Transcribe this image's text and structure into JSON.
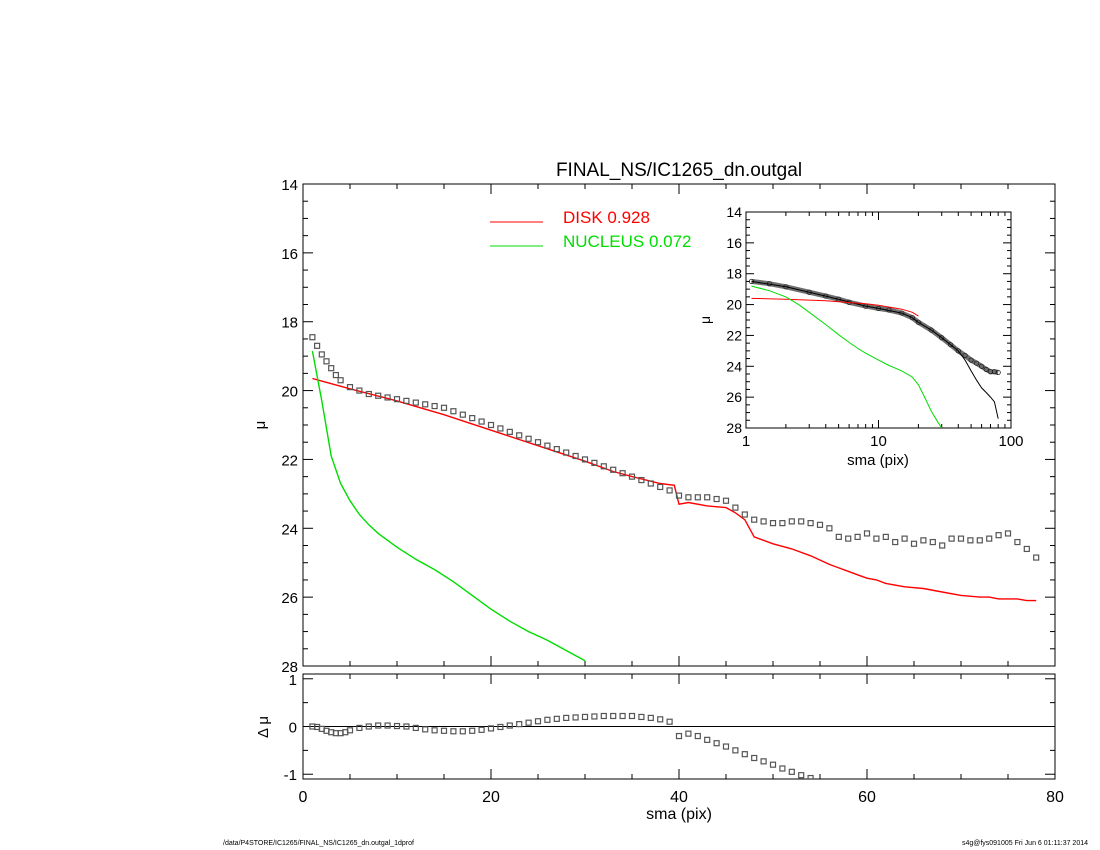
{
  "figure": {
    "title": "FINAL_NS/IC1265_dn.outgal",
    "footer_left": "/data/P4STORE/IC1265/FINAL_NS/IC1265_dn.outgal_1dprof",
    "footer_right": "s4g@fys091005  Fri Jun  6 01:11:37 2014"
  },
  "chart_data": [
    {
      "id": "main",
      "type": "scatter",
      "title": "FINAL_NS/IC1265_dn.outgal",
      "xlabel": "",
      "ylabel": "μ",
      "xlim": [
        0,
        80
      ],
      "ylim": [
        28,
        14
      ],
      "y_inverted": true,
      "yticks": [
        14,
        16,
        18,
        20,
        22,
        24,
        26,
        28
      ],
      "legend": {
        "placement": "top-center",
        "entries": [
          {
            "label": "DISK",
            "value": "0.928",
            "color": "#ff0000"
          },
          {
            "label": "NUCLEUS",
            "value": "0.072",
            "color": "#00dd00"
          }
        ]
      },
      "series": [
        {
          "name": "DISK",
          "kind": "line",
          "color": "#ff0000",
          "x": [
            1,
            5,
            10,
            15,
            20,
            25,
            30,
            33,
            35,
            38,
            39.5,
            40,
            41,
            43,
            45,
            46,
            47,
            48,
            50,
            52,
            54,
            56,
            57,
            58,
            59,
            60,
            61,
            62,
            64,
            66,
            68,
            70,
            72,
            73,
            74,
            75,
            76,
            77,
            78
          ],
          "y": [
            19.65,
            19.95,
            20.3,
            20.7,
            21.15,
            21.6,
            22.05,
            22.35,
            22.5,
            22.7,
            22.75,
            23.3,
            23.25,
            23.35,
            23.4,
            23.55,
            23.75,
            24.25,
            24.45,
            24.6,
            24.8,
            25.05,
            25.15,
            25.25,
            25.35,
            25.45,
            25.5,
            25.6,
            25.7,
            25.75,
            25.85,
            25.95,
            26.0,
            26.0,
            26.05,
            26.05,
            26.05,
            26.1,
            26.1
          ]
        },
        {
          "name": "NUCLEUS",
          "kind": "line",
          "color": "#00dd00",
          "x": [
            1,
            2,
            3,
            4,
            5,
            6,
            7,
            8,
            10,
            12,
            14,
            16,
            18,
            20,
            22,
            24,
            26,
            28,
            30
          ],
          "y": [
            18.85,
            20.3,
            21.9,
            22.7,
            23.2,
            23.6,
            23.9,
            24.15,
            24.55,
            24.9,
            25.2,
            25.55,
            25.95,
            26.35,
            26.7,
            27.0,
            27.25,
            27.55,
            27.85
          ]
        },
        {
          "name": "",
          "kind": "markers",
          "color": "#555555",
          "x": [
            1,
            1.5,
            2,
            2.5,
            3,
            3.5,
            4,
            5,
            6,
            7,
            8,
            9,
            10,
            11,
            12,
            13,
            14,
            15,
            16,
            17,
            18,
            19,
            20,
            21,
            22,
            23,
            24,
            25,
            26,
            27,
            28,
            29,
            30,
            31,
            32,
            33,
            34,
            35,
            36,
            37,
            38,
            39,
            40,
            41,
            42,
            43,
            44,
            45,
            46,
            47,
            48,
            49,
            50,
            51,
            52,
            53,
            54,
            55,
            56,
            57,
            58,
            59,
            60,
            61,
            62,
            63,
            64,
            65,
            66,
            67,
            68,
            69,
            70,
            71,
            72,
            73,
            74,
            75,
            76,
            77,
            78
          ],
          "y": [
            18.45,
            18.7,
            18.95,
            19.15,
            19.35,
            19.55,
            19.7,
            19.9,
            20.0,
            20.1,
            20.15,
            20.2,
            20.25,
            20.3,
            20.35,
            20.4,
            20.45,
            20.5,
            20.6,
            20.7,
            20.8,
            20.9,
            21.0,
            21.1,
            21.2,
            21.3,
            21.4,
            21.5,
            21.6,
            21.7,
            21.8,
            21.9,
            22.0,
            22.1,
            22.2,
            22.3,
            22.4,
            22.5,
            22.6,
            22.7,
            22.8,
            22.9,
            23.05,
            23.1,
            23.1,
            23.1,
            23.15,
            23.2,
            23.4,
            23.6,
            23.75,
            23.8,
            23.85,
            23.85,
            23.8,
            23.8,
            23.85,
            23.9,
            24.0,
            24.25,
            24.3,
            24.25,
            24.15,
            24.3,
            24.25,
            24.4,
            24.3,
            24.45,
            24.35,
            24.4,
            24.5,
            24.3,
            24.3,
            24.35,
            24.35,
            24.3,
            24.2,
            24.15,
            24.4,
            24.6,
            24.85
          ]
        }
      ]
    },
    {
      "id": "residual",
      "type": "scatter",
      "xlabel": "sma (pix)",
      "ylabel": "Δ μ",
      "xlim": [
        0,
        80
      ],
      "ylim": [
        -1.1,
        1.1
      ],
      "xticks": [
        0,
        20,
        40,
        60,
        80
      ],
      "yticks": [
        -1,
        0,
        1
      ],
      "reference_line": 0,
      "series": [
        {
          "name": "",
          "kind": "markers",
          "color": "#555555",
          "x": [
            1,
            1.5,
            2,
            2.5,
            3,
            3.5,
            4,
            4.5,
            5,
            6,
            7,
            8,
            9,
            10,
            11,
            12,
            13,
            14,
            15,
            16,
            17,
            18,
            19,
            20,
            21,
            22,
            23,
            24,
            25,
            26,
            27,
            28,
            29,
            30,
            31,
            32,
            33,
            34,
            35,
            36,
            37,
            38,
            39,
            40,
            41,
            42,
            43,
            44,
            45,
            46,
            47,
            48,
            49,
            50,
            51,
            52,
            53,
            54
          ],
          "y": [
            0.0,
            -0.01,
            -0.05,
            -0.09,
            -0.12,
            -0.14,
            -0.14,
            -0.12,
            -0.08,
            -0.03,
            0.0,
            0.02,
            0.02,
            0.01,
            0.0,
            -0.03,
            -0.06,
            -0.08,
            -0.09,
            -0.1,
            -0.1,
            -0.09,
            -0.07,
            -0.04,
            -0.01,
            0.02,
            0.05,
            0.08,
            0.11,
            0.14,
            0.16,
            0.18,
            0.19,
            0.2,
            0.21,
            0.22,
            0.22,
            0.22,
            0.22,
            0.2,
            0.18,
            0.15,
            0.1,
            -0.2,
            -0.15,
            -0.2,
            -0.28,
            -0.35,
            -0.42,
            -0.5,
            -0.58,
            -0.66,
            -0.73,
            -0.8,
            -0.88,
            -0.95,
            -1.02,
            -1.08
          ]
        }
      ]
    },
    {
      "id": "inset",
      "type": "line",
      "xlabel": "sma (pix)",
      "ylabel": "μ",
      "xscale": "log",
      "xlim": [
        1,
        100
      ],
      "ylim": [
        28,
        14
      ],
      "xticks": [
        1,
        10,
        100
      ],
      "yticks": [
        14,
        16,
        18,
        20,
        22,
        24,
        26,
        28
      ],
      "series": [
        {
          "name": "",
          "kind": "band",
          "color": "#555555",
          "x": [
            1.1,
            1.5,
            2,
            3,
            4,
            5,
            6,
            8,
            10,
            12,
            15,
            18,
            20,
            25,
            30,
            35,
            40,
            45,
            50,
            55,
            60,
            65,
            70,
            75,
            80
          ],
          "y": [
            18.5,
            18.65,
            18.85,
            19.2,
            19.45,
            19.65,
            19.85,
            20.1,
            20.25,
            20.35,
            20.55,
            20.85,
            21.15,
            21.65,
            22.15,
            22.6,
            23.0,
            23.3,
            23.6,
            23.8,
            24.0,
            24.2,
            24.35,
            24.35,
            24.4
          ]
        },
        {
          "name": "",
          "kind": "line",
          "color": "#000000",
          "x": [
            1.1,
            2,
            4,
            8,
            10,
            15,
            18,
            20,
            25,
            30,
            35,
            40,
            45,
            50,
            55,
            60,
            65,
            70,
            75,
            80
          ],
          "y": [
            18.5,
            18.85,
            19.45,
            20.1,
            20.25,
            20.55,
            20.85,
            21.15,
            21.65,
            22.15,
            22.6,
            23.0,
            23.6,
            24.3,
            24.9,
            25.4,
            25.7,
            26.0,
            26.3,
            27.4
          ]
        },
        {
          "name": "DISK",
          "kind": "line",
          "color": "#ff0000",
          "x": [
            1.1,
            2,
            4,
            8,
            10,
            15,
            18,
            20
          ],
          "y": [
            19.6,
            19.65,
            19.75,
            19.95,
            20.05,
            20.3,
            20.5,
            20.75
          ]
        },
        {
          "name": "NUCLEUS",
          "kind": "line",
          "color": "#00dd00",
          "x": [
            1.1,
            1.5,
            2,
            2.5,
            3,
            4,
            5,
            6,
            7,
            8,
            10,
            12,
            15,
            18,
            20,
            22,
            25,
            28,
            30
          ],
          "y": [
            18.8,
            19.1,
            19.5,
            20.0,
            20.5,
            21.3,
            21.95,
            22.45,
            22.85,
            23.15,
            23.6,
            23.95,
            24.3,
            24.7,
            25.2,
            25.9,
            26.9,
            27.6,
            28.0
          ]
        }
      ]
    }
  ]
}
